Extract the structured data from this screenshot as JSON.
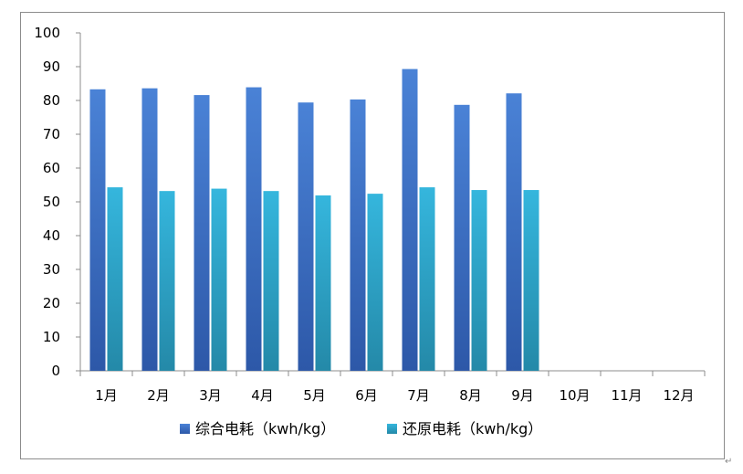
{
  "chart_data": {
    "type": "bar",
    "categories": [
      "1月",
      "2月",
      "3月",
      "4月",
      "5月",
      "6月",
      "7月",
      "8月",
      "9月",
      "10月",
      "11月",
      "12月"
    ],
    "series": [
      {
        "name": "综合电耗（kwh/kg）",
        "values": [
          83.3,
          83.6,
          81.6,
          83.9,
          79.4,
          80.3,
          89.3,
          78.7,
          82.1,
          null,
          null,
          null
        ],
        "color": "#3a6fc4"
      },
      {
        "name": "还原电耗（kwh/kg）",
        "values": [
          54.3,
          53.2,
          53.9,
          53.2,
          51.9,
          52.4,
          54.3,
          53.5,
          53.5,
          null,
          null,
          null
        ],
        "color": "#2aa3c9"
      }
    ],
    "yticks": [
      "0",
      "10",
      "20",
      "30",
      "40",
      "50",
      "60",
      "70",
      "80",
      "90",
      "100"
    ],
    "ylim": [
      0,
      100
    ],
    "legend_position": "bottom",
    "grid": false
  },
  "page": {
    "return_mark": "↵"
  }
}
